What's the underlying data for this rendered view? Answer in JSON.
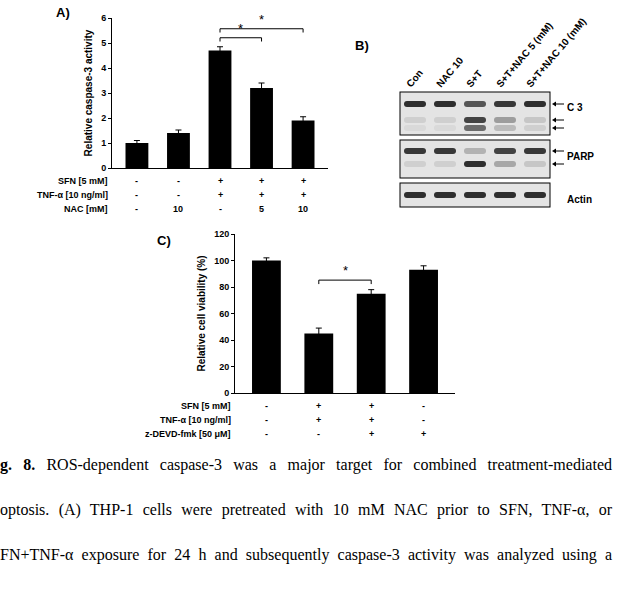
{
  "chart_data": [
    {
      "type": "bar",
      "panel": "A)",
      "ylabel": "Relative caspase-3 activity",
      "categories": [
        null,
        null,
        null,
        null,
        null
      ],
      "values": [
        1.0,
        1.4,
        4.7,
        3.2,
        1.9
      ],
      "errors": [
        0.1,
        0.12,
        0.15,
        0.2,
        0.15
      ],
      "color": "#000000",
      "ylim": [
        0,
        6
      ],
      "yticks": [
        0,
        1,
        2,
        3,
        4,
        5,
        6
      ],
      "grid": false,
      "tick_labels": "y",
      "treatments": [
        {
          "label": "SFN [5 mM]",
          "values": [
            "-",
            "-",
            "+",
            "+",
            "+"
          ]
        },
        {
          "label": "TNF-α [10 ng/ml]",
          "values": [
            "-",
            "-",
            "+",
            "+",
            "+"
          ]
        },
        {
          "label": "NAC [mM]",
          "values": [
            "-",
            "10",
            "-",
            "5",
            "10"
          ]
        }
      ],
      "significance": [
        {
          "from": 2,
          "to": 3,
          "label": "*"
        },
        {
          "from": 2,
          "to": 4,
          "label": "*"
        }
      ]
    },
    {
      "type": "bar",
      "panel": "C)",
      "ylabel": "Relative cell viability (%)",
      "categories": [
        null,
        null,
        null,
        null
      ],
      "values": [
        100,
        45,
        75,
        93
      ],
      "errors": [
        2,
        4,
        3,
        3
      ],
      "color": "#000000",
      "ylim": [
        0,
        120
      ],
      "yticks": [
        0,
        20,
        40,
        60,
        80,
        100,
        120
      ],
      "grid": false,
      "tick_labels": "y",
      "treatments": [
        {
          "label": "SFN [5 mM]",
          "values": [
            "-",
            "+",
            "+",
            "-"
          ]
        },
        {
          "label": "TNF-α [10 ng/ml]",
          "values": [
            "-",
            "+",
            "+",
            "-"
          ]
        },
        {
          "label": "z-DEVD-fmk [50 μM]",
          "values": [
            "-",
            "-",
            "+",
            "+"
          ]
        }
      ],
      "significance": [
        {
          "from": 1,
          "to": 2,
          "label": "*"
        }
      ]
    }
  ],
  "blot": {
    "panel": "B)",
    "lanes": [
      "Con",
      "NAC 10",
      "S+T",
      "S+T+NAC 5 (mM)",
      "S+T+NAC 10 (mM)"
    ],
    "rows": [
      "C 3",
      "PARP",
      "Actin"
    ]
  },
  "caption": {
    "label": "g. 8.",
    "lines": [
      "ROS-dependent caspase-3 was a major target for combined treatment-mediated",
      "optosis. (A) THP-1 cells were pretreated with 10 mM NAC prior to SFN, TNF-α, or",
      "FN+TNF-α exposure for 24 h and subsequently caspase-3 activity was analyzed using a"
    ]
  }
}
